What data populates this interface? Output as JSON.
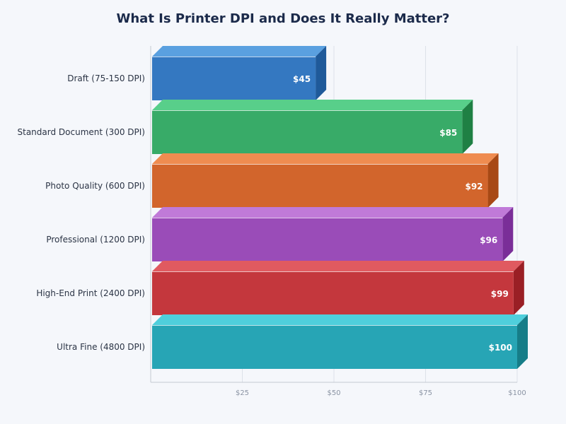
{
  "chart_data": {
    "type": "bar",
    "orientation": "horizontal",
    "style": "3d",
    "title": "What Is Printer DPI and Does It Really Matter?",
    "categories": [
      "Draft (75-150 DPI)",
      "Standard Document (300 DPI)",
      "Photo Quality (600 DPI)",
      "Professional (1200 DPI)",
      "High-End Print (2400 DPI)",
      "Ultra Fine (4800 DPI)"
    ],
    "values": [
      45,
      85,
      92,
      96,
      99,
      100
    ],
    "data_labels": [
      "$45",
      "$85",
      "$92",
      "$96",
      "$99",
      "$100"
    ],
    "xlim": [
      0,
      100
    ],
    "x_ticks": [
      25,
      50,
      75,
      100
    ],
    "x_tick_labels": [
      "$25",
      "$50",
      "$75",
      "$100"
    ],
    "grid": "vertical",
    "colors": [
      {
        "front": "#3478c1",
        "top": "#5aa0e0",
        "side": "#1f5a9a"
      },
      {
        "front": "#38ab68",
        "top": "#58cf8a",
        "side": "#1f8044"
      },
      {
        "front": "#d2652c",
        "top": "#ef8c50",
        "side": "#a84915"
      },
      {
        "front": "#9a4cb8",
        "top": "#c07ad8",
        "side": "#7a2e98"
      },
      {
        "front": "#c4373d",
        "top": "#e05a60",
        "side": "#9a1f25"
      },
      {
        "front": "#27a5b5",
        "top": "#4fcfdc",
        "side": "#167d88"
      }
    ]
  }
}
